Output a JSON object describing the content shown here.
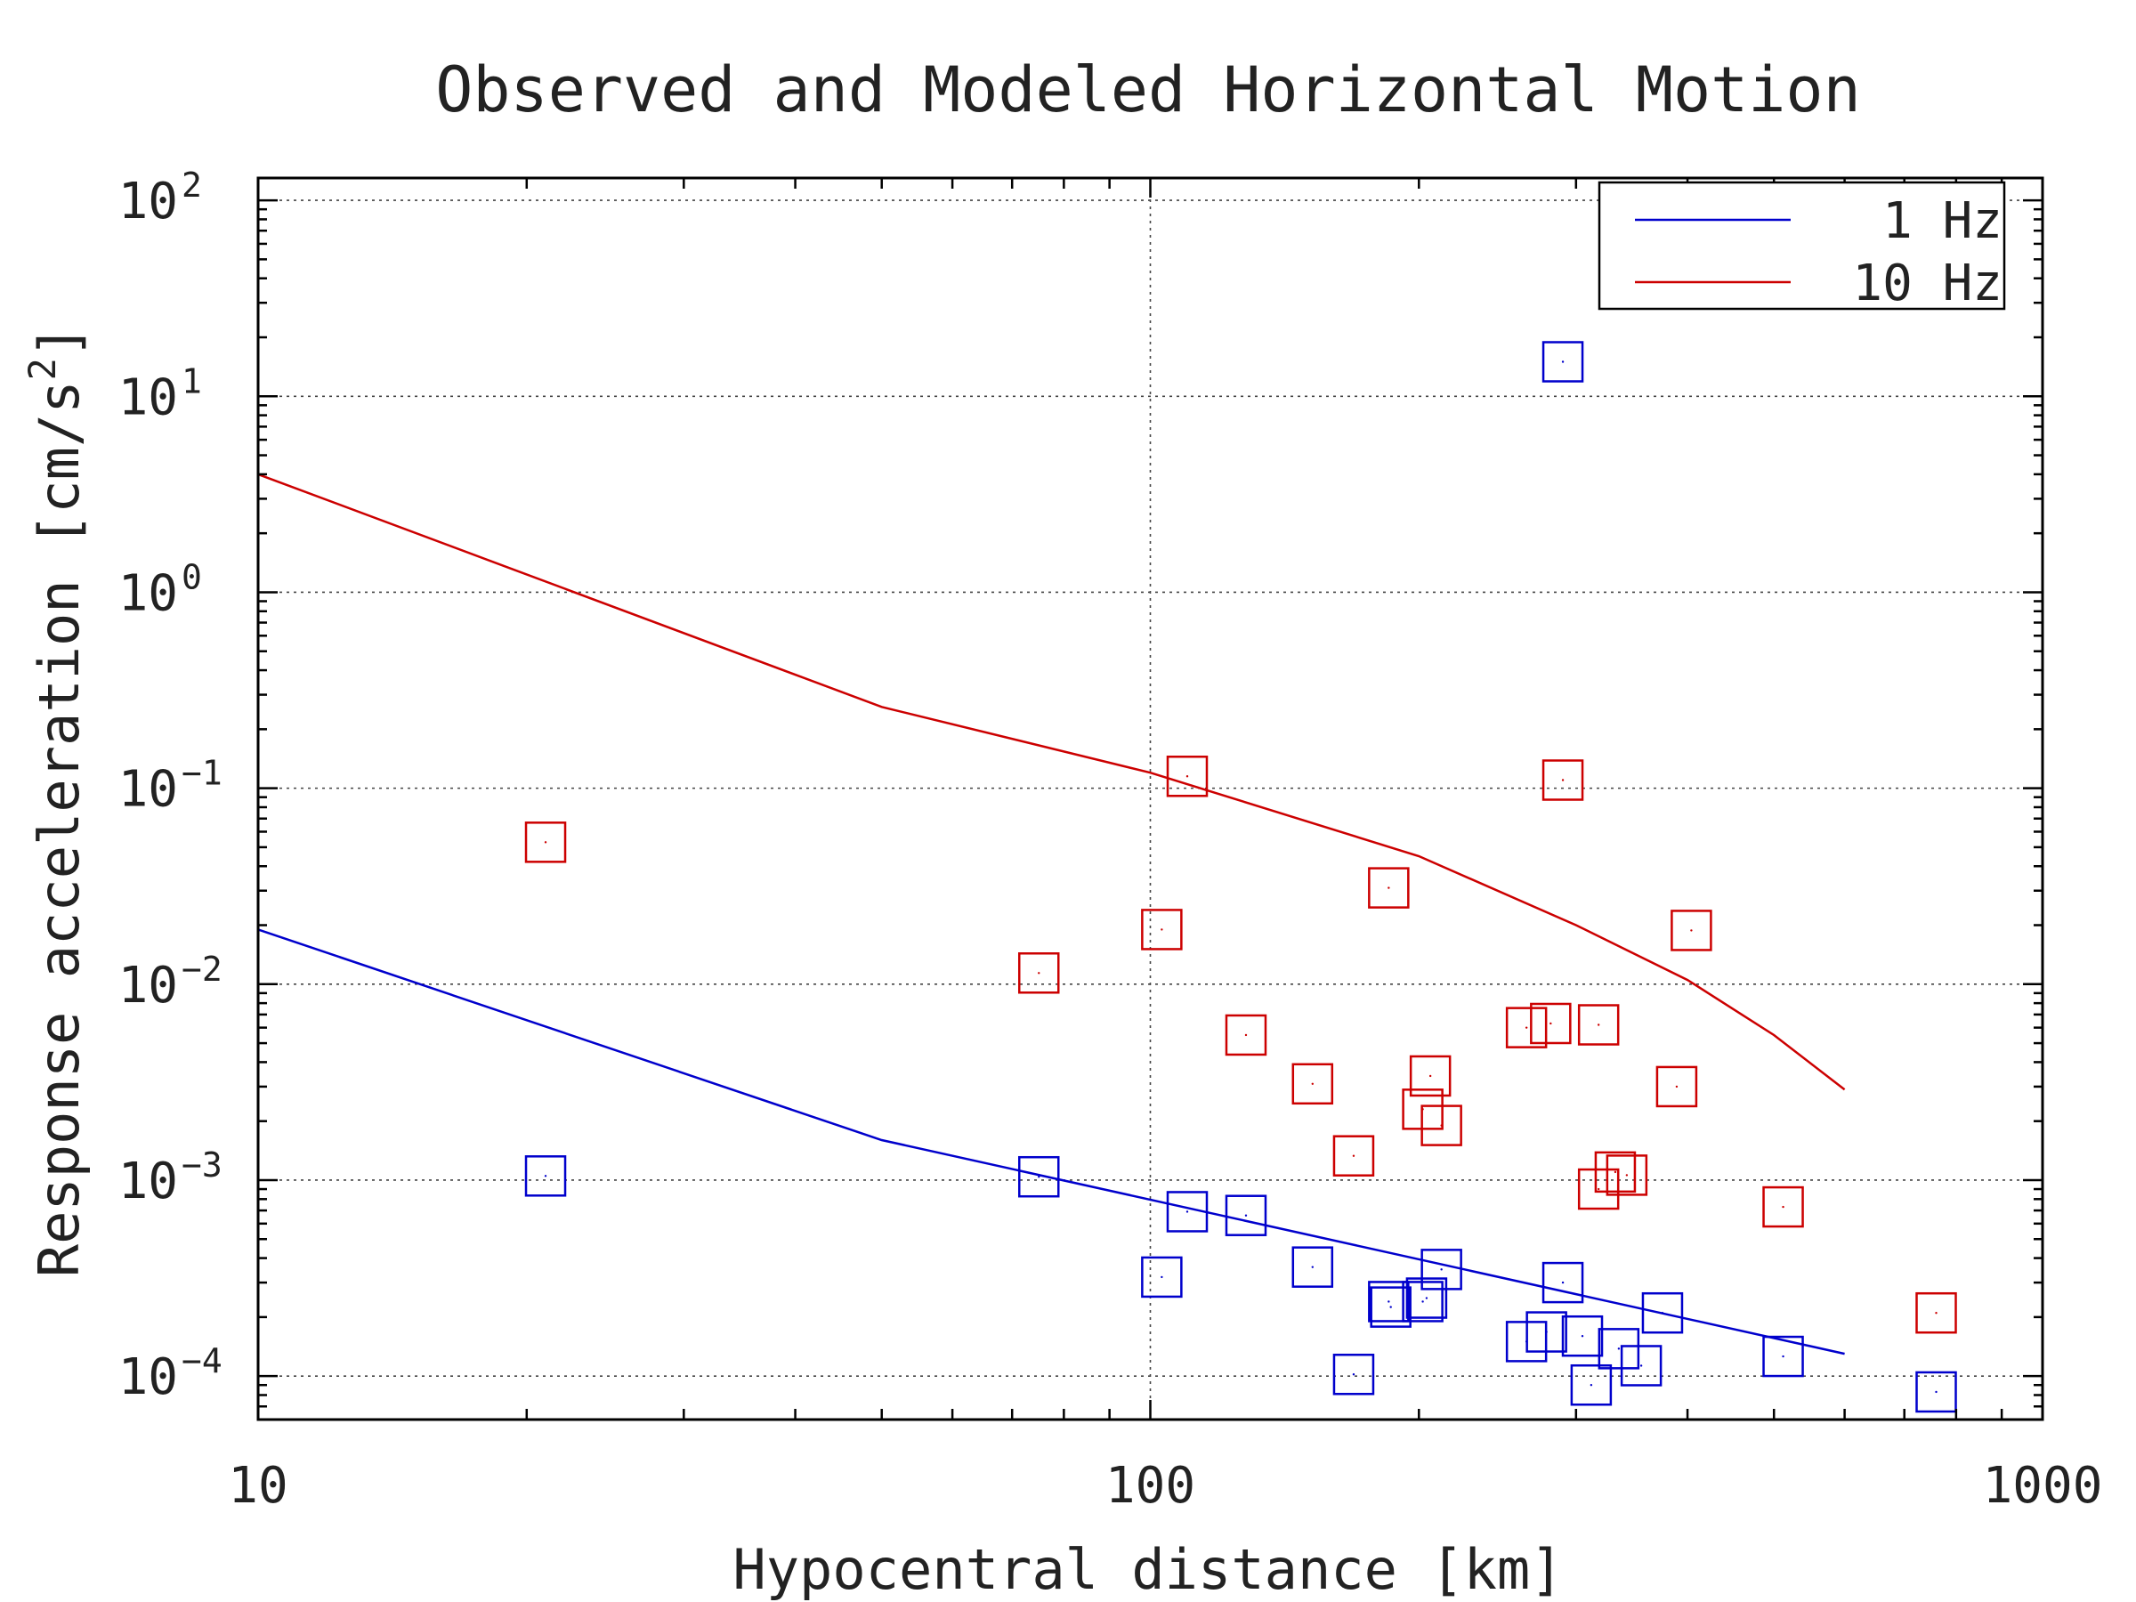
{
  "chart_data": {
    "type": "scatter",
    "title": "Observed and Modeled Horizontal Motion",
    "xlabel": "Hypocentral distance [km]",
    "ylabel": "Response acceleration [cm/s2]",
    "xscale": "log",
    "yscale": "log",
    "xlim": [
      10,
      1000
    ],
    "ylim": [
      6e-05,
      130
    ],
    "xticks": [
      {
        "value": 10,
        "label": "10"
      },
      {
        "value": 100,
        "label": "100"
      },
      {
        "value": 1000,
        "label": "1000"
      }
    ],
    "yticks": [
      {
        "value": 0.0001,
        "base": "10",
        "exp": "−4"
      },
      {
        "value": 0.001,
        "base": "10",
        "exp": "−3"
      },
      {
        "value": 0.01,
        "base": "10",
        "exp": "−2"
      },
      {
        "value": 0.1,
        "base": "10",
        "exp": "−1"
      },
      {
        "value": 1,
        "base": "10",
        "exp": "0"
      },
      {
        "value": 10,
        "base": "10",
        "exp": "1"
      },
      {
        "value": 100,
        "base": "10",
        "exp": "2"
      }
    ],
    "grid": true,
    "legend_position": "top-right",
    "series": [
      {
        "name": "1 Hz",
        "kind": "line",
        "color": "#0000cc",
        "x": [
          10,
          50,
          600
        ],
        "y": [
          0.019,
          0.0016,
          0.00013
        ]
      },
      {
        "name": "10 Hz",
        "kind": "line",
        "color": "#cc0000",
        "x": [
          10,
          50,
          100,
          200,
          300,
          400,
          500,
          600
        ],
        "y": [
          4.0,
          0.26,
          0.12,
          0.045,
          0.02,
          0.0105,
          0.0055,
          0.0029
        ]
      },
      {
        "kind": "markers",
        "marker": "square",
        "color": "#cc0000",
        "x": [
          21,
          75,
          103,
          110,
          128,
          152,
          169,
          185,
          202,
          206,
          212,
          264,
          281,
          290,
          318,
          318,
          332,
          342,
          389,
          404,
          512,
          760
        ],
        "y": [
          0.053,
          0.0114,
          0.019,
          0.115,
          0.0055,
          0.0031,
          0.00133,
          0.031,
          0.0023,
          0.0034,
          0.0019,
          0.006,
          0.0063,
          0.11,
          0.0062,
          0.0009,
          0.0011,
          0.00106,
          0.003,
          0.0188,
          0.00073,
          0.00021
        ]
      },
      {
        "kind": "markers",
        "marker": "square",
        "color": "#0000cc",
        "x": [
          21,
          75,
          103,
          110,
          128,
          152,
          169,
          185,
          186,
          202,
          204,
          212,
          264,
          278,
          290,
          305,
          312,
          335,
          355,
          375,
          512,
          760
        ],
        "y": [
          0.00105,
          0.00104,
          0.00032,
          0.00069,
          0.00066,
          0.00036,
          0.000102,
          0.00024,
          0.000225,
          0.00024,
          0.00025,
          0.00035,
          0.00015,
          0.000168,
          0.0003,
          0.00016,
          9e-05,
          0.000138,
          0.000113,
          0.00021,
          0.000126,
          8.3e-05
        ]
      },
      {
        "kind": "markers",
        "marker": "square",
        "color": "#0000cc",
        "x": [
          290
        ],
        "y": [
          15
        ]
      }
    ]
  }
}
